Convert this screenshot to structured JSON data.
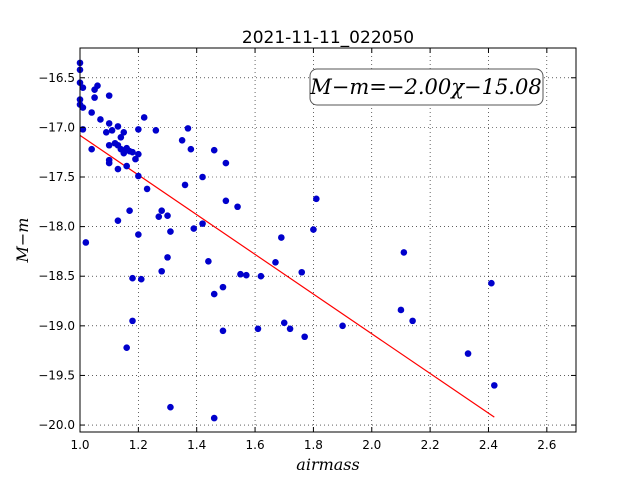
{
  "chart_data": {
    "type": "scatter",
    "title": "2021-11-11_022050",
    "xlabel": "airmass",
    "ylabel": "M−m",
    "xlim": [
      1.0,
      2.7
    ],
    "ylim": [
      -20.07,
      -16.2
    ],
    "x_ticks": [
      1.0,
      1.2,
      1.4,
      1.6,
      1.8,
      2.0,
      2.2,
      2.4,
      2.6
    ],
    "x_tick_labels": [
      "1.0",
      "1.2",
      "1.4",
      "1.6",
      "1.8",
      "2.0",
      "2.2",
      "2.4",
      "2.6"
    ],
    "y_ticks": [
      -16.5,
      -17.0,
      -17.5,
      -18.0,
      -18.5,
      -19.0,
      -19.5,
      -20.0
    ],
    "y_tick_labels": [
      "−16.5",
      "−17.0",
      "−17.5",
      "−18.0",
      "−18.5",
      "−19.0",
      "−19.5",
      "−20.0"
    ],
    "grid": true,
    "annotation": "M−m=−2.00χ−15.08",
    "colors": {
      "points": "#0000cc",
      "fit": "#ff0000"
    },
    "fit": {
      "slope": -2.0,
      "intercept": -15.08,
      "x_range": [
        1.0,
        2.42
      ]
    },
    "points": [
      [
        1.0,
        -16.35
      ],
      [
        1.0,
        -16.42
      ],
      [
        1.0,
        -16.55
      ],
      [
        1.01,
        -16.6
      ],
      [
        1.0,
        -16.72
      ],
      [
        1.0,
        -16.77
      ],
      [
        1.01,
        -16.8
      ],
      [
        1.01,
        -17.02
      ],
      [
        1.04,
        -16.85
      ],
      [
        1.05,
        -16.62
      ],
      [
        1.05,
        -16.7
      ],
      [
        1.06,
        -16.58
      ],
      [
        1.07,
        -16.92
      ],
      [
        1.09,
        -17.05
      ],
      [
        1.1,
        -16.96
      ],
      [
        1.1,
        -16.68
      ],
      [
        1.1,
        -17.18
      ],
      [
        1.11,
        -17.03
      ],
      [
        1.12,
        -17.16
      ],
      [
        1.13,
        -16.99
      ],
      [
        1.13,
        -17.18
      ],
      [
        1.14,
        -17.22
      ],
      [
        1.14,
        -17.1
      ],
      [
        1.15,
        -17.05
      ],
      [
        1.15,
        -17.26
      ],
      [
        1.16,
        -17.21
      ],
      [
        1.17,
        -17.24
      ],
      [
        1.18,
        -17.25
      ],
      [
        1.19,
        -17.32
      ],
      [
        1.2,
        -17.02
      ],
      [
        1.2,
        -17.27
      ],
      [
        1.1,
        -17.33
      ],
      [
        1.1,
        -17.36
      ],
      [
        1.13,
        -17.42
      ],
      [
        1.16,
        -17.39
      ],
      [
        1.2,
        -17.49
      ],
      [
        1.22,
        -16.9
      ],
      [
        1.23,
        -17.62
      ],
      [
        1.26,
        -17.03
      ],
      [
        1.04,
        -17.22
      ],
      [
        1.35,
        -17.13
      ],
      [
        1.37,
        -17.01
      ],
      [
        1.38,
        -17.22
      ],
      [
        1.46,
        -17.23
      ],
      [
        1.5,
        -17.36
      ],
      [
        1.36,
        -17.58
      ],
      [
        1.42,
        -17.5
      ],
      [
        1.17,
        -17.84
      ],
      [
        1.13,
        -17.94
      ],
      [
        1.27,
        -17.9
      ],
      [
        1.28,
        -17.84
      ],
      [
        1.3,
        -17.89
      ],
      [
        1.31,
        -18.05
      ],
      [
        1.39,
        -18.02
      ],
      [
        1.42,
        -17.97
      ],
      [
        1.5,
        -17.74
      ],
      [
        1.54,
        -17.8
      ],
      [
        1.2,
        -18.08
      ],
      [
        1.02,
        -18.16
      ],
      [
        1.3,
        -18.31
      ],
      [
        1.44,
        -18.35
      ],
      [
        1.28,
        -18.45
      ],
      [
        1.18,
        -18.52
      ],
      [
        1.21,
        -18.53
      ],
      [
        1.55,
        -18.48
      ],
      [
        1.57,
        -18.49
      ],
      [
        1.62,
        -18.5
      ],
      [
        1.67,
        -18.36
      ],
      [
        1.69,
        -18.11
      ],
      [
        1.76,
        -18.46
      ],
      [
        1.8,
        -18.03
      ],
      [
        1.81,
        -17.72
      ],
      [
        1.46,
        -18.68
      ],
      [
        1.49,
        -18.61
      ],
      [
        1.18,
        -18.95
      ],
      [
        1.49,
        -19.05
      ],
      [
        1.61,
        -19.03
      ],
      [
        1.7,
        -18.97
      ],
      [
        1.72,
        -19.03
      ],
      [
        1.77,
        -19.11
      ],
      [
        1.9,
        -19.0
      ],
      [
        2.1,
        -18.84
      ],
      [
        2.11,
        -18.26
      ],
      [
        2.14,
        -18.95
      ],
      [
        2.33,
        -19.28
      ],
      [
        2.41,
        -18.57
      ],
      [
        2.42,
        -19.6
      ],
      [
        1.16,
        -19.22
      ],
      [
        1.31,
        -19.82
      ],
      [
        1.46,
        -19.93
      ]
    ]
  }
}
